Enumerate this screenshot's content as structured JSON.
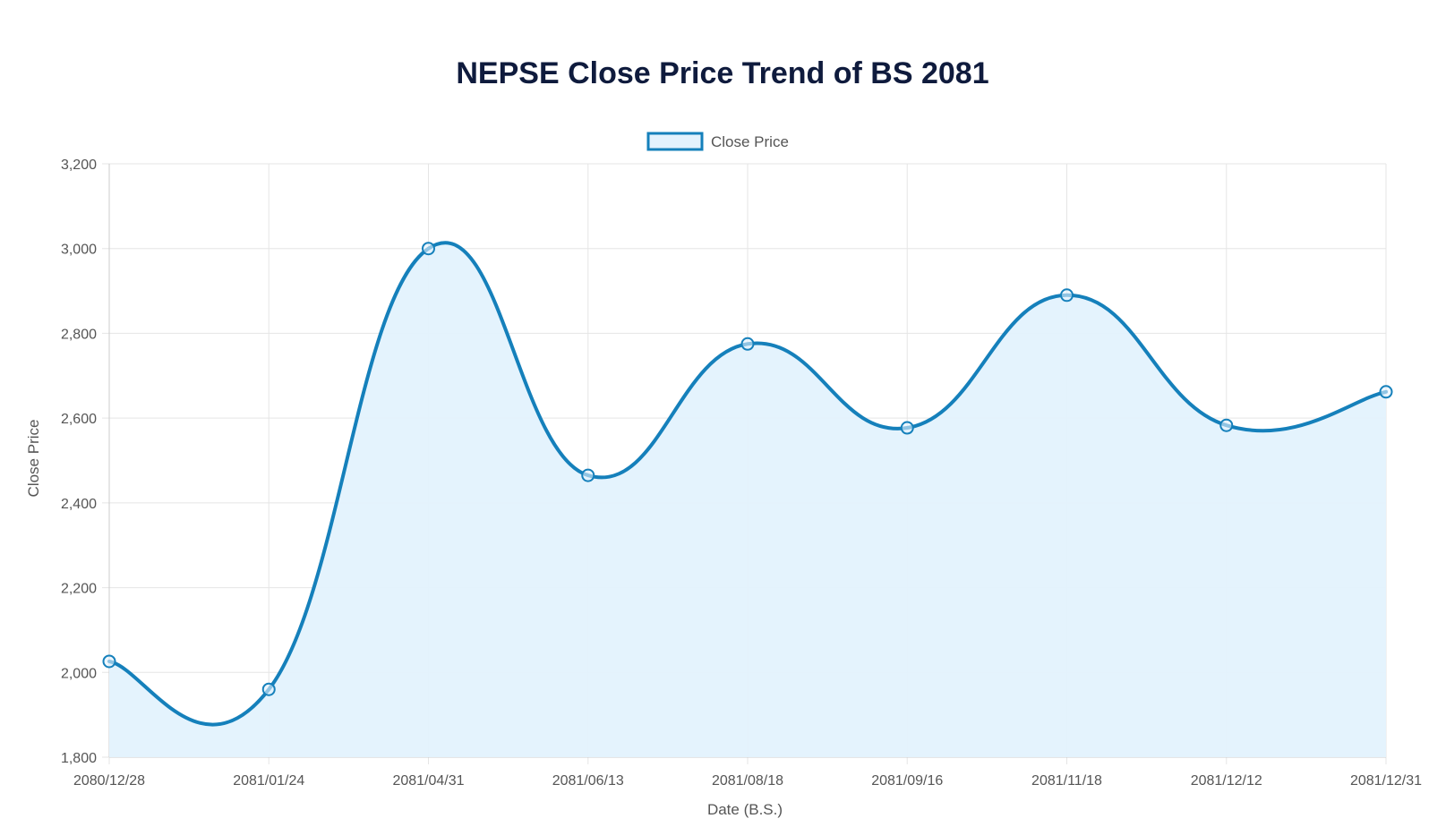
{
  "chart_data": {
    "type": "line",
    "title": "NEPSE Close Price Trend of BS 2081",
    "xlabel": "Date (B.S.)",
    "ylabel": "Close Price",
    "categories": [
      "2080/12/28",
      "2081/01/24",
      "2081/04/31",
      "2081/06/13",
      "2081/08/18",
      "2081/09/16",
      "2081/11/18",
      "2081/12/12",
      "2081/12/31"
    ],
    "series": [
      {
        "name": "Close Price",
        "values": [
          2026,
          1960,
          3000,
          2465,
          2775,
          2577,
          2890,
          2583,
          2662
        ]
      }
    ],
    "ylim": [
      1800,
      3200
    ],
    "yticks": [
      1800,
      2000,
      2200,
      2400,
      2600,
      2800,
      3000,
      3200
    ],
    "ytick_labels": [
      "1,800",
      "2,000",
      "2,200",
      "2,400",
      "2,600",
      "2,800",
      "3,000",
      "3,200"
    ],
    "grid": true,
    "fill": true,
    "smooth": true,
    "legend_position": "top",
    "colors": {
      "line": "#1580BB",
      "fill": "#E3F2FD",
      "grid": "#E5E5E5",
      "axis_text": "#555555",
      "title": "#0F1B3D"
    }
  }
}
